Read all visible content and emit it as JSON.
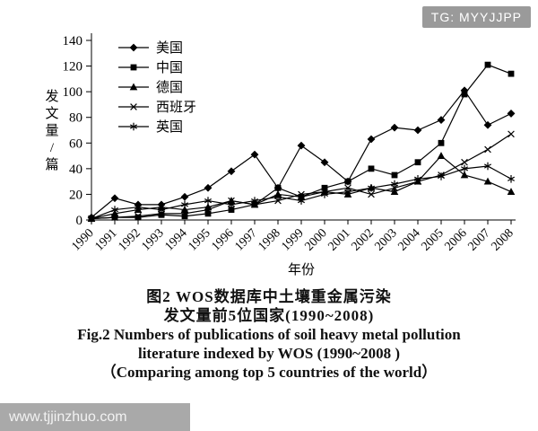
{
  "watermarks": {
    "top_right": "TG: MYYJJPP",
    "bottom_left": "www.tjjinzhuo.com"
  },
  "caption": {
    "zh_line1": "图2 WOS数据库中土壤重金属污染",
    "zh_line2": "发文量前5位国家(1990~2008)",
    "en_line1": "Fig.2  Numbers of publications of soil heavy metal pollution",
    "en_line2": "literature indexed by WOS (1990~2008 )",
    "en_line3": "（Comparing among top 5 countries of the world）"
  },
  "chart_data": {
    "type": "line",
    "title": "图2 WOS数据库中土壤重金属污染发文量前5位国家(1990~2008)",
    "xlabel": "年份",
    "ylabel": "发文量/篇",
    "ylim": [
      0,
      140
    ],
    "ytick_step": 20,
    "grid": false,
    "legend_position": "top-left-inside",
    "color": "#000000",
    "x": [
      "1990",
      "1991",
      "1992",
      "1993",
      "1994",
      "1995",
      "1996",
      "1997",
      "1998",
      "1999",
      "2000",
      "2001",
      "2002",
      "2003",
      "2004",
      "2005",
      "2006",
      "2007",
      "2008"
    ],
    "series": [
      {
        "name": "美国",
        "marker": "diamond",
        "values": [
          2,
          17,
          12,
          12,
          18,
          25,
          38,
          51,
          25,
          58,
          45,
          30,
          63,
          72,
          70,
          78,
          101,
          74,
          83
        ]
      },
      {
        "name": "中国",
        "marker": "square",
        "values": [
          1,
          2,
          2,
          4,
          3,
          5,
          8,
          12,
          25,
          18,
          25,
          30,
          40,
          35,
          45,
          60,
          98,
          121,
          114
        ]
      },
      {
        "name": "德国",
        "marker": "triangle",
        "values": [
          1,
          5,
          8,
          10,
          8,
          10,
          15,
          12,
          20,
          18,
          22,
          20,
          25,
          22,
          30,
          50,
          35,
          30,
          22
        ]
      },
      {
        "name": "西班牙",
        "marker": "x",
        "values": [
          1,
          2,
          3,
          5,
          5,
          8,
          15,
          12,
          15,
          20,
          22,
          25,
          20,
          25,
          30,
          35,
          45,
          55,
          67
        ]
      },
      {
        "name": "英国",
        "marker": "asterisk",
        "values": [
          1,
          8,
          10,
          8,
          12,
          15,
          12,
          15,
          18,
          15,
          20,
          22,
          25,
          28,
          32,
          34,
          40,
          42,
          32
        ]
      }
    ]
  }
}
